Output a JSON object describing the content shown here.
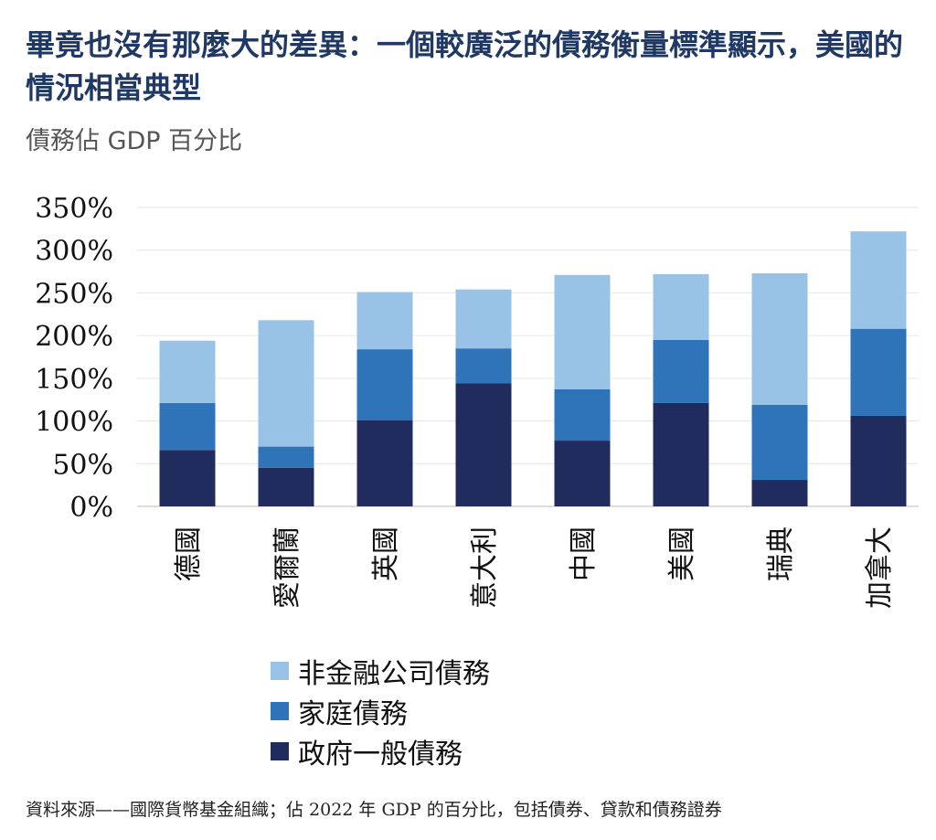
{
  "header": {
    "title": "畢竟也沒有那麼大的差異：一個較廣泛的債務衡量標準顯示，美國的情況相當典型",
    "subtitle": "債務佔 GDP 百分比"
  },
  "footer": {
    "source": "資料來源——國際貨幣基金組織；佔 2022 年 GDP 的百分比，包括債券、貸款和債務證券"
  },
  "colors": {
    "government": "#212c5e",
    "household": "#2f74b8",
    "nonfinancial": "#99c3e6",
    "grid": "#e6e6e6"
  },
  "chart_data": {
    "type": "bar",
    "stacked": true,
    "categories": [
      "德國",
      "愛爾蘭",
      "英國",
      "意大利",
      "中國",
      "美國",
      "瑞典",
      "加拿大"
    ],
    "series": [
      {
        "name": "政府一般債務",
        "values": [
          66,
          45,
          101,
          144,
          77,
          121,
          31,
          106
        ]
      },
      {
        "name": "家庭債務",
        "values": [
          55,
          25,
          83,
          41,
          60,
          74,
          88,
          102
        ]
      },
      {
        "name": "非金融公司債務",
        "values": [
          73,
          148,
          67,
          69,
          134,
          77,
          154,
          114
        ]
      }
    ],
    "legend_order": [
      2,
      1,
      0
    ],
    "ylim": [
      0,
      350
    ],
    "yticks": [
      0,
      50,
      100,
      150,
      200,
      250,
      300,
      350
    ],
    "ytick_labels": [
      "0%",
      "50%",
      "100%",
      "150%",
      "200%",
      "250%",
      "300%",
      "350%"
    ],
    "grid": true,
    "legend_position": "bottom"
  }
}
